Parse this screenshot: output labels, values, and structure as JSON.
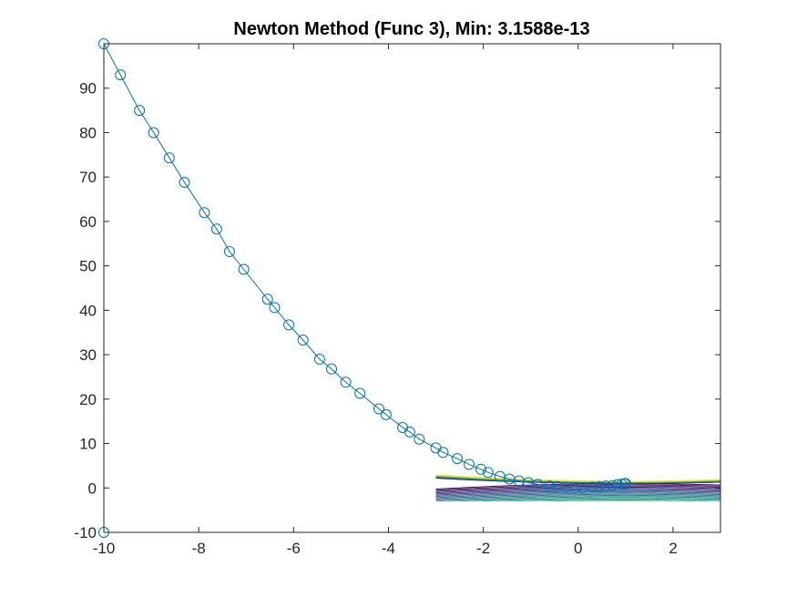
{
  "chart_data": {
    "type": "line",
    "title": "Newton Method (Func 3), Min: 3.1588e-13",
    "xlabel": "",
    "ylabel": "",
    "xlim": [
      -10,
      3
    ],
    "ylim": [
      -10,
      100
    ],
    "xticks": [
      -10,
      -8,
      -6,
      -4,
      -2,
      0,
      2
    ],
    "yticks": [
      -10,
      0,
      10,
      20,
      30,
      40,
      50,
      60,
      70,
      80,
      90
    ],
    "grid": false,
    "series": [
      {
        "color": "#0072BD",
        "marker": "circle",
        "x": [
          -10,
          -10,
          -9.65,
          -9.25,
          -8.95,
          -8.62,
          -8.3,
          -7.88,
          -7.62,
          -7.35,
          -7.05,
          -6.55,
          -6.4,
          -6.1,
          -5.8,
          -5.45,
          -5.2,
          -4.9,
          -4.6,
          -4.2,
          -4.05,
          -3.7,
          -3.55,
          -3.35,
          -3.0,
          -2.85,
          -2.55,
          -2.3,
          -2.05,
          -1.9,
          -1.65,
          -1.45,
          -1.25,
          -1.05,
          -0.85,
          -0.6,
          -0.45,
          -0.25,
          -0.05,
          0.1,
          0.3,
          0.45,
          0.58,
          0.72,
          0.83,
          0.92,
          0.98,
          1.0
        ],
        "y": [
          -10,
          100,
          93,
          85,
          80,
          74.3,
          68.8,
          62,
          58.3,
          53.2,
          49.2,
          42.5,
          40.6,
          36.7,
          33.3,
          29,
          26.8,
          23.8,
          21.3,
          17.8,
          16.5,
          13.6,
          12.6,
          11,
          9,
          8,
          6.6,
          5.3,
          4.2,
          3.5,
          2.6,
          2,
          1.6,
          1.2,
          0.8,
          0.45,
          0.3,
          0.15,
          0.05,
          0.05,
          0.2,
          0.3,
          0.45,
          0.55,
          0.75,
          0.85,
          0.95,
          1.0
        ]
      }
    ],
    "contour": {
      "xlim": [
        -3,
        3
      ],
      "ylim": [
        -3,
        3
      ],
      "colormap": [
        "#440154",
        "#3b528b",
        "#21918c",
        "#5ec962",
        "#fde725"
      ]
    }
  }
}
